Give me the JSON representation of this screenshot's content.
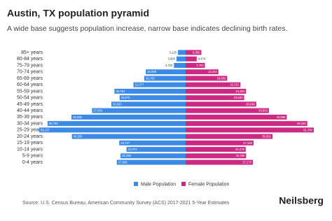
{
  "chart_data": {
    "type": "pyramid",
    "title": "Austin, TX population pyramid",
    "subtitle": "A wide base suggests population increase, narrow base indicates declining birth rates.",
    "categories": [
      "85+ years",
      "80-84 years",
      "75-79 years",
      "70-74 years",
      "65-69 years",
      "60-64 years",
      "55-59 years",
      "50-54 years",
      "45-49 years",
      "40-44 years",
      "35-39 years",
      "30-34 years",
      "25-29 years",
      "20-24 years",
      "15-19 years",
      "10-14 years",
      "5-9 years",
      "0-4 years"
    ],
    "series": [
      {
        "name": "Male Population",
        "color": "#3b8ae6",
        "values": [
          3125,
          3693,
          4720,
          16098,
          16730,
          21077,
          28764,
          26670,
          30020,
          37803,
          46095,
          55793,
          59137,
          45935,
          26797,
          23873,
          26298,
          27806
        ],
        "value_labels": [
          "3,125",
          "3,693",
          "4,720",
          "16,098",
          "16,730",
          "21,077",
          "28,764",
          "26,670",
          "30,020",
          "37,803",
          "46,095",
          "55,793",
          "59,137",
          "45,935",
          "26,797",
          "23,873",
          "26,298",
          "27,806"
        ]
      },
      {
        "name": "Female Population",
        "color": "#cc2a82",
        "values": [
          6380,
          4474,
          7793,
          13240,
          16802,
          22151,
          24394,
          23640,
          28546,
          33653,
          40866,
          49160,
          51784,
          35091,
          27446,
          24276,
          24450,
          27173
        ],
        "value_labels": [
          "6,380",
          "4,474",
          "7,793",
          "13,240",
          "16,802",
          "22,151",
          "24,394",
          "23,640",
          "28,546",
          "33,653",
          "40,866",
          "49,160",
          "51,784",
          "35,091",
          "27,446",
          "24,276",
          "24,450",
          "27,173"
        ]
      }
    ],
    "source": "Source: U.S. Census Bureau, American Community Survey (ACS) 2017-2021 5-Year Estimates",
    "brand": "Neilsberg"
  }
}
